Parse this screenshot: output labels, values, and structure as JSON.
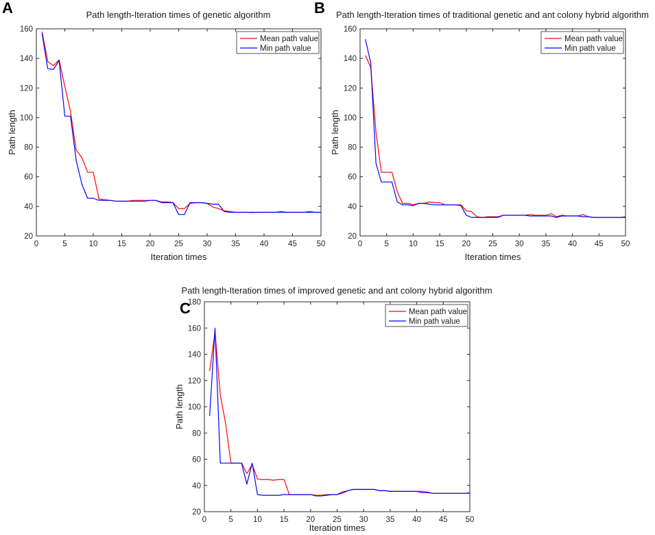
{
  "chart_data": [
    {
      "panel": "A",
      "type": "line",
      "title": "Path length-Iteration times of genetic algorithm",
      "xlabel": "Iteration times",
      "ylabel": "Path length",
      "xlim": [
        0,
        50
      ],
      "ylim": [
        20,
        160
      ],
      "xticks": [
        0,
        5,
        10,
        15,
        20,
        25,
        30,
        35,
        40,
        45,
        50
      ],
      "yticks": [
        20,
        40,
        60,
        80,
        100,
        120,
        140,
        160
      ],
      "legend_position": "top-right",
      "series": [
        {
          "name": "Mean path value",
          "color": "#ff0000",
          "x": [
            1,
            2,
            3,
            4,
            5,
            6,
            7,
            8,
            9,
            10,
            11,
            12,
            13,
            14,
            15,
            16,
            17,
            18,
            19,
            20,
            21,
            22,
            23,
            24,
            25,
            26,
            27,
            28,
            29,
            30,
            31,
            32,
            33,
            34,
            35,
            36,
            37,
            38,
            39,
            40,
            41,
            42,
            43,
            44,
            45,
            46,
            47,
            48,
            49,
            50
          ],
          "values": [
            158,
            138,
            135,
            139,
            121,
            104,
            78,
            73,
            63,
            63,
            45,
            44.5,
            44,
            43.5,
            43.5,
            43.5,
            44,
            44,
            44,
            44,
            44,
            43,
            43,
            42.5,
            38.5,
            38.5,
            42,
            42.5,
            42.5,
            42,
            39.5,
            38.5,
            37,
            36.5,
            36,
            36,
            36,
            35.8,
            36,
            36,
            36,
            36,
            36.5,
            36,
            36,
            36,
            36,
            36.5,
            36,
            36
          ]
        },
        {
          "name": "Min path value",
          "color": "#0000ff",
          "x": [
            1,
            2,
            3,
            4,
            5,
            6,
            7,
            8,
            9,
            10,
            11,
            12,
            13,
            14,
            15,
            16,
            17,
            18,
            19,
            20,
            21,
            22,
            23,
            24,
            25,
            26,
            27,
            28,
            29,
            30,
            31,
            32,
            33,
            34,
            35,
            36,
            37,
            38,
            39,
            40,
            41,
            42,
            43,
            44,
            45,
            46,
            47,
            48,
            49,
            50
          ],
          "values": [
            157,
            133,
            132.5,
            138.5,
            101,
            101,
            71,
            55,
            45.5,
            45.5,
            44,
            44,
            44,
            43.5,
            43.5,
            43.5,
            43.5,
            43.5,
            43.5,
            44,
            44,
            42.5,
            42.5,
            42.5,
            34.5,
            34.5,
            42.5,
            42.5,
            42.5,
            42,
            41.5,
            41.5,
            36.5,
            36,
            36,
            36,
            36,
            36,
            36,
            36,
            36,
            36,
            36,
            36,
            36,
            36,
            36,
            36,
            36,
            36
          ]
        }
      ]
    },
    {
      "panel": "B",
      "type": "line",
      "title": "Path length-Iteration times of traditional genetic and ant colony hybrid algorithm",
      "xlabel": "Iteration times",
      "ylabel": "Path length",
      "xlim": [
        0,
        50
      ],
      "ylim": [
        20,
        160
      ],
      "xticks": [
        0,
        5,
        10,
        15,
        20,
        25,
        30,
        35,
        40,
        45,
        50
      ],
      "yticks": [
        20,
        40,
        60,
        80,
        100,
        120,
        140,
        160
      ],
      "legend_position": "top-right",
      "series": [
        {
          "name": "Mean path value",
          "color": "#ff0000",
          "x": [
            1,
            2,
            3,
            4,
            5,
            6,
            7,
            8,
            9,
            10,
            11,
            12,
            13,
            14,
            15,
            16,
            17,
            18,
            19,
            20,
            21,
            22,
            23,
            24,
            25,
            26,
            27,
            28,
            29,
            30,
            31,
            32,
            33,
            34,
            35,
            36,
            37,
            38,
            39,
            40,
            41,
            42,
            43,
            44,
            45,
            46,
            47,
            48,
            49,
            50
          ],
          "values": [
            142,
            134,
            90,
            63,
            63,
            63,
            50,
            42,
            42,
            41,
            42,
            42,
            43,
            42.5,
            42.5,
            41,
            41,
            41,
            41,
            37,
            36.5,
            33,
            32.5,
            33,
            33,
            33,
            34,
            34,
            34,
            34,
            34,
            34.5,
            34,
            34,
            34,
            35,
            33,
            34,
            33.5,
            33.5,
            33.5,
            34.5,
            33,
            32.5,
            32.5,
            32.5,
            32.5,
            32.5,
            32.5,
            33
          ]
        },
        {
          "name": "Min path value",
          "color": "#0000ff",
          "x": [
            1,
            2,
            3,
            4,
            5,
            6,
            7,
            8,
            9,
            10,
            11,
            12,
            13,
            14,
            15,
            16,
            17,
            18,
            19,
            20,
            21,
            22,
            23,
            24,
            25,
            26,
            27,
            28,
            29,
            30,
            31,
            32,
            33,
            34,
            35,
            36,
            37,
            38,
            39,
            40,
            41,
            42,
            43,
            44,
            45,
            46,
            47,
            48,
            49,
            50
          ],
          "values": [
            153,
            137,
            69,
            56.5,
            56.5,
            56.5,
            43,
            41,
            41,
            40.5,
            42,
            42,
            41.5,
            41,
            41,
            41,
            41,
            41,
            40.5,
            34,
            32.5,
            32.5,
            32.5,
            32.5,
            32.5,
            32.5,
            34,
            34,
            34,
            34,
            34,
            33.5,
            33.5,
            33.5,
            33.5,
            33.5,
            32.5,
            33.5,
            33.5,
            33.5,
            33.5,
            33,
            33,
            32.5,
            32.5,
            32.5,
            32.5,
            32.5,
            32.5,
            32.5
          ]
        }
      ]
    },
    {
      "panel": "C",
      "type": "line",
      "title": "Path length-Iteration times of improved genetic and ant colony hybrid algorithm",
      "xlabel": "Iteration times",
      "ylabel": "Path length",
      "xlim": [
        0,
        50
      ],
      "ylim": [
        20,
        180
      ],
      "xticks": [
        0,
        5,
        10,
        15,
        20,
        25,
        30,
        35,
        40,
        45,
        50
      ],
      "yticks": [
        20,
        40,
        60,
        80,
        100,
        120,
        140,
        160,
        180
      ],
      "legend_position": "top-right",
      "series": [
        {
          "name": "Mean path value",
          "color": "#ff0000",
          "x": [
            1,
            2,
            3,
            4,
            5,
            6,
            7,
            8,
            9,
            10,
            11,
            12,
            13,
            14,
            15,
            16,
            17,
            18,
            19,
            20,
            21,
            22,
            23,
            24,
            25,
            26,
            27,
            28,
            29,
            30,
            31,
            32,
            33,
            34,
            35,
            36,
            37,
            38,
            39,
            40,
            41,
            42,
            43,
            44,
            45,
            46,
            47,
            48,
            49,
            50
          ],
          "values": [
            127,
            157,
            109,
            87,
            57,
            57,
            57,
            49,
            56,
            45,
            44.5,
            44.5,
            44,
            44.5,
            44.5,
            33,
            33,
            33,
            33,
            33,
            32.5,
            32.5,
            33,
            33,
            33,
            34,
            36,
            37,
            37,
            37,
            37,
            37,
            36,
            36,
            35.5,
            35.5,
            35.5,
            35.5,
            35.5,
            35.5,
            35.5,
            35,
            34,
            34,
            34,
            34,
            34,
            34,
            34,
            34.5
          ]
        },
        {
          "name": "Min path value",
          "color": "#0000ff",
          "x": [
            1,
            2,
            3,
            4,
            5,
            6,
            7,
            8,
            9,
            10,
            11,
            12,
            13,
            14,
            15,
            16,
            17,
            18,
            19,
            20,
            21,
            22,
            23,
            24,
            25,
            26,
            27,
            28,
            29,
            30,
            31,
            32,
            33,
            34,
            35,
            36,
            37,
            38,
            39,
            40,
            41,
            42,
            43,
            44,
            45,
            46,
            47,
            48,
            49,
            50
          ],
          "values": [
            93,
            160,
            57,
            57,
            57,
            57,
            57,
            41,
            57,
            33,
            32.5,
            32.5,
            32.5,
            32.5,
            33,
            33,
            33,
            33,
            33,
            33,
            32,
            32,
            32.5,
            33,
            33,
            35,
            36,
            37,
            37,
            37,
            37,
            37,
            36,
            36,
            35.5,
            35.5,
            35.5,
            35.5,
            35.5,
            35.5,
            34.5,
            34.5,
            34,
            34,
            34,
            34,
            34,
            34,
            34,
            34
          ]
        }
      ]
    }
  ]
}
